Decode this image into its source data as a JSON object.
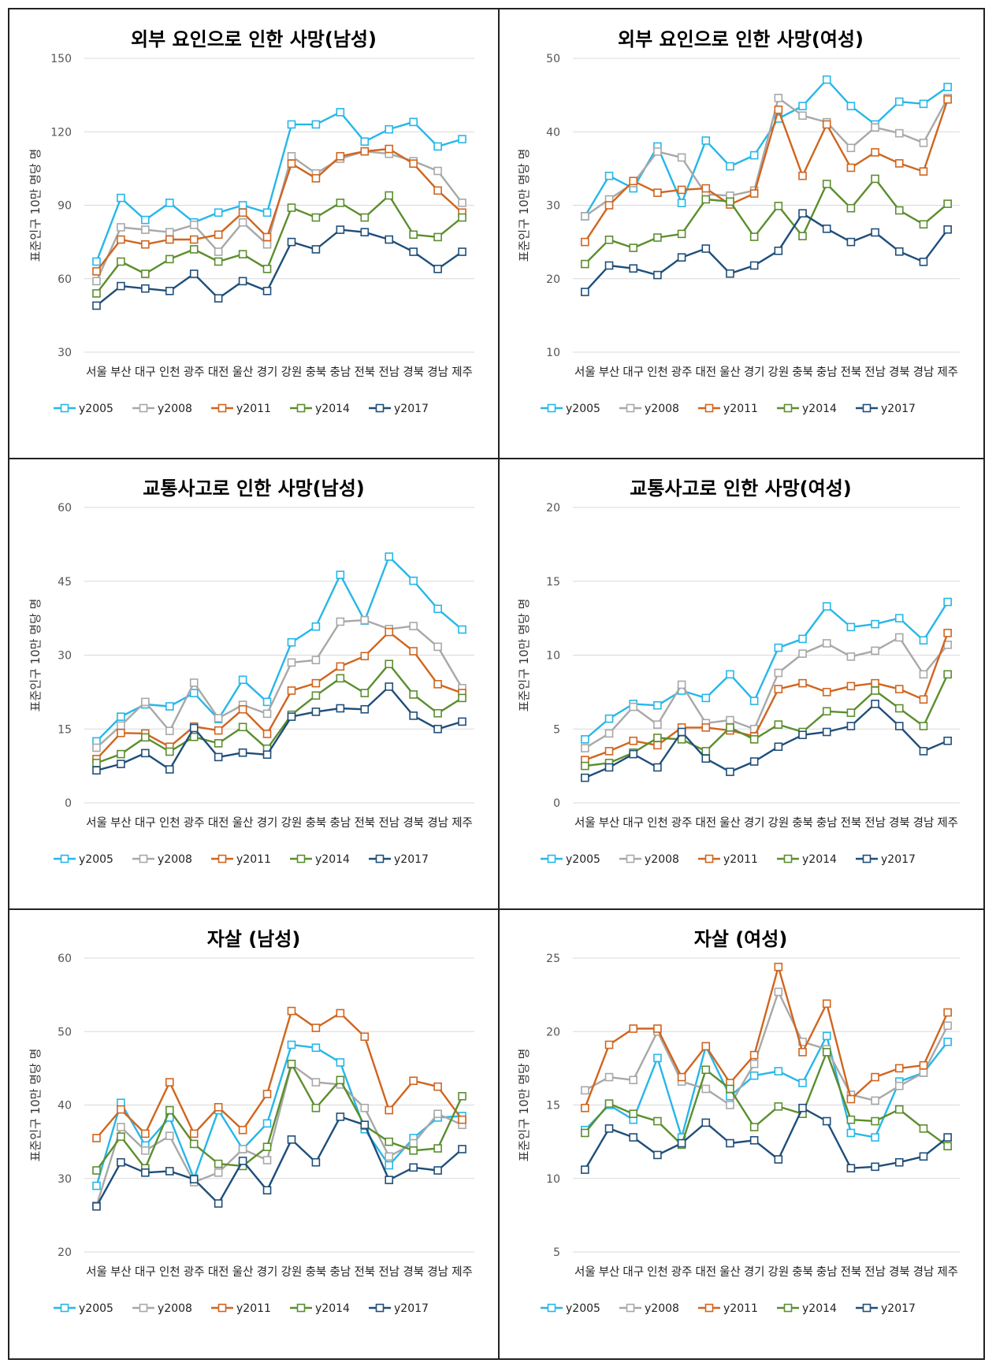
{
  "chart_data": [
    {
      "type": "line",
      "title": "외부 요인으로 인한 사망(남성)",
      "ylabel": "표준인구 10만 명당 명",
      "xlabel": "",
      "ylim": [
        30,
        150
      ],
      "yticks": [
        30,
        60,
        90,
        120,
        150
      ],
      "categories": [
        "서울",
        "부산",
        "대구",
        "인천",
        "광주",
        "대전",
        "울산",
        "경기",
        "강원",
        "충북",
        "충남",
        "전북",
        "전남",
        "경북",
        "경남",
        "제주"
      ],
      "series": [
        {
          "name": "y2005",
          "values": [
            67,
            93,
            84,
            91,
            83,
            87,
            90,
            87,
            123,
            123,
            128,
            116,
            121,
            124,
            114,
            117
          ]
        },
        {
          "name": "y2008",
          "values": [
            59,
            81,
            80,
            79,
            82,
            71,
            83,
            74,
            110,
            103,
            109,
            112,
            111,
            108,
            104,
            91
          ]
        },
        {
          "name": "y2011",
          "values": [
            63,
            76,
            74,
            76,
            76,
            78,
            87,
            77,
            107,
            101,
            110,
            112,
            113,
            107,
            96,
            87
          ]
        },
        {
          "name": "y2014",
          "values": [
            54,
            67,
            62,
            68,
            72,
            67,
            70,
            64,
            89,
            85,
            91,
            85,
            94,
            78,
            77,
            85
          ]
        },
        {
          "name": "y2017",
          "values": [
            49,
            57,
            56,
            55,
            62,
            52,
            59,
            55,
            75,
            72,
            80,
            79,
            76,
            71,
            64,
            71
          ]
        }
      ]
    },
    {
      "type": "line",
      "title": "외부 요인으로 인한 사망(여성)",
      "ylabel": "표준인구 10만 명당 명",
      "xlabel": "",
      "ylim": [
        10,
        50
      ],
      "yticks": [
        10,
        20,
        30,
        40,
        50
      ],
      "categories": [
        "서울",
        "부산",
        "대구",
        "인천",
        "광주",
        "대전",
        "울산",
        "경기",
        "강원",
        "충북",
        "충남",
        "전북",
        "전남",
        "경북",
        "경남",
        "제주"
      ],
      "series": [
        {
          "name": "y2005",
          "values": [
            28.5,
            34,
            32.3,
            38,
            30.3,
            38.8,
            35.3,
            36.8,
            41.8,
            43.5,
            47.1,
            43.5,
            41,
            44.1,
            43.8,
            46.1
          ]
        },
        {
          "name": "y2008",
          "values": [
            28.5,
            30.8,
            33,
            37.3,
            36.5,
            31.5,
            31.3,
            32,
            44.6,
            42.2,
            41.3,
            37.8,
            40.6,
            39.8,
            38.5,
            44.6
          ]
        },
        {
          "name": "y2011",
          "values": [
            25,
            30,
            33.3,
            31.7,
            32.1,
            32.3,
            30.1,
            31.6,
            43,
            34,
            41,
            35.1,
            37.2,
            35.7,
            34.6,
            44.4
          ]
        },
        {
          "name": "y2014",
          "values": [
            22,
            25.3,
            24.2,
            25.6,
            26.1,
            30.8,
            30.5,
            25.7,
            29.9,
            25.8,
            32.9,
            29.6,
            33.6,
            29.3,
            27.4,
            30.2
          ]
        },
        {
          "name": "y2017",
          "values": [
            18.2,
            21.8,
            21.4,
            20.5,
            22.9,
            24.1,
            20.7,
            21.8,
            23.8,
            28.9,
            26.8,
            25,
            26.3,
            23.7,
            22.3,
            26.7
          ]
        }
      ]
    },
    {
      "type": "line",
      "title": "교통사고로 인한 사망(남성)",
      "ylabel": "표준인구 10만 명당 명",
      "xlabel": "",
      "ylim": [
        0,
        60
      ],
      "yticks": [
        0,
        15,
        30,
        45,
        60
      ],
      "categories": [
        "서울",
        "부산",
        "대구",
        "인천",
        "광주",
        "대전",
        "울산",
        "경기",
        "강원",
        "충북",
        "충남",
        "전북",
        "전남",
        "경북",
        "경남",
        "제주"
      ],
      "series": [
        {
          "name": "y2005",
          "values": [
            12.5,
            17.5,
            20,
            19.6,
            22.3,
            17,
            25,
            20.5,
            32.6,
            35.8,
            46.3,
            37,
            50,
            45.1,
            39.4,
            35.2
          ]
        },
        {
          "name": "y2008",
          "values": [
            11.2,
            15.7,
            20.5,
            14.6,
            24.4,
            17.2,
            19.9,
            18.1,
            28.5,
            29,
            36.8,
            37.1,
            35.3,
            35.9,
            31.7,
            23.3
          ]
        },
        {
          "name": "y2011",
          "values": [
            8.9,
            14.2,
            14.1,
            11.4,
            15.5,
            14.7,
            19,
            14,
            22.8,
            24.3,
            27.7,
            29.8,
            34.7,
            30.8,
            24.1,
            22.3
          ]
        },
        {
          "name": "y2014",
          "values": [
            8.1,
            9.9,
            13.3,
            10.4,
            13.4,
            12.1,
            15.4,
            11,
            17.9,
            21.8,
            25.3,
            22.3,
            28.2,
            22,
            18.2,
            21.3
          ]
        },
        {
          "name": "y2017",
          "values": [
            6.6,
            7.9,
            10.1,
            6.8,
            15.2,
            9.3,
            10.2,
            9.8,
            17.5,
            18.5,
            19.2,
            19,
            23.6,
            17.7,
            15,
            16.5
          ]
        }
      ]
    },
    {
      "type": "line",
      "title": "교통사고로 인한 사망(여성)",
      "ylabel": "표준인구 10만 명당 명",
      "xlabel": "",
      "ylim": [
        0,
        20
      ],
      "yticks": [
        0,
        5,
        10,
        15,
        20
      ],
      "categories": [
        "서울",
        "부산",
        "대구",
        "인천",
        "광주",
        "대전",
        "울산",
        "경기",
        "강원",
        "충북",
        "충남",
        "전북",
        "전남",
        "경북",
        "경남",
        "제주"
      ],
      "series": [
        {
          "name": "y2005",
          "values": [
            4.3,
            5.7,
            6.7,
            6.6,
            7.6,
            7.1,
            8.7,
            6.9,
            10.5,
            11.1,
            13.3,
            11.9,
            12.1,
            12.5,
            11,
            13.6
          ]
        },
        {
          "name": "y2008",
          "values": [
            3.7,
            4.7,
            6.5,
            5.3,
            8,
            5.4,
            5.6,
            5,
            8.8,
            10.1,
            10.8,
            9.9,
            10.3,
            11.2,
            8.7,
            10.7
          ]
        },
        {
          "name": "y2011",
          "values": [
            2.9,
            3.5,
            4.2,
            3.9,
            5.1,
            5.1,
            4.9,
            4.5,
            7.7,
            8.1,
            7.5,
            7.9,
            8.1,
            7.7,
            7,
            11.5
          ]
        },
        {
          "name": "y2014",
          "values": [
            2.5,
            2.7,
            3.4,
            4.4,
            4.3,
            3.5,
            5.1,
            4.3,
            5.3,
            4.8,
            6.2,
            6.1,
            7.6,
            6.4,
            5.2,
            8.7
          ]
        },
        {
          "name": "y2017",
          "values": [
            1.7,
            2.4,
            3.3,
            2.4,
            4.8,
            3,
            2.1,
            2.8,
            3.8,
            4.6,
            4.8,
            5.2,
            6.7,
            5.2,
            3.5,
            4.2
          ]
        }
      ]
    },
    {
      "type": "line",
      "title": "자살 (남성)",
      "ylabel": "표준인구 10만 명당 명",
      "xlabel": "",
      "ylim": [
        20,
        60
      ],
      "yticks": [
        20,
        30,
        40,
        50,
        60
      ],
      "categories": [
        "서울",
        "부산",
        "대구",
        "인천",
        "광주",
        "대전",
        "울산",
        "경기",
        "강원",
        "충북",
        "충남",
        "전북",
        "전남",
        "경북",
        "경남",
        "제주"
      ],
      "series": [
        {
          "name": "y2005",
          "values": [
            29,
            40.3,
            34.5,
            38.3,
            30,
            39.3,
            34,
            37.5,
            48.2,
            47.8,
            45.8,
            36.7,
            31.8,
            35.5,
            38.3,
            38.5
          ]
        },
        {
          "name": "y2008",
          "values": [
            26.3,
            37,
            33.8,
            35.8,
            29.5,
            30.8,
            34,
            32.5,
            45.5,
            43.1,
            42.8,
            39.6,
            33,
            34.8,
            38.8,
            37.3
          ]
        },
        {
          "name": "y2011",
          "values": [
            35.5,
            39.4,
            36.1,
            43.1,
            36.1,
            39.7,
            36.6,
            41.5,
            52.8,
            50.5,
            52.5,
            49.3,
            39.3,
            43.3,
            42.5,
            38
          ]
        },
        {
          "name": "y2014",
          "values": [
            31.1,
            35.7,
            31.4,
            39.3,
            34.7,
            32,
            31.7,
            34.3,
            45.6,
            39.6,
            43.4,
            37.2,
            35,
            33.8,
            34.1,
            41.2
          ]
        },
        {
          "name": "y2017",
          "values": [
            26.2,
            32.2,
            30.8,
            31,
            29.9,
            26.6,
            32.4,
            28.4,
            35.3,
            32.2,
            38.4,
            37.3,
            29.8,
            31.5,
            31.1,
            34
          ]
        }
      ]
    },
    {
      "type": "line",
      "title": "자살 (여성)",
      "ylabel": "표준인구 10만 명당 명",
      "xlabel": "",
      "ylim": [
        5,
        25
      ],
      "yticks": [
        5,
        10,
        15,
        20,
        25
      ],
      "categories": [
        "서울",
        "부산",
        "대구",
        "인천",
        "광주",
        "대전",
        "울산",
        "경기",
        "강원",
        "충북",
        "충남",
        "전북",
        "전남",
        "경북",
        "경남",
        "제주"
      ],
      "series": [
        {
          "name": "y2005",
          "values": [
            13.3,
            15,
            14,
            18.2,
            12.8,
            19,
            15.6,
            17,
            17.3,
            16.5,
            19.7,
            13.1,
            12.8,
            16.6,
            17.2,
            19.3
          ]
        },
        {
          "name": "y2008",
          "values": [
            16,
            16.9,
            16.7,
            20,
            16.6,
            16.1,
            15,
            17.8,
            22.7,
            19.3,
            18.8,
            15.7,
            15.3,
            16.3,
            17.2,
            20.4
          ]
        },
        {
          "name": "y2011",
          "values": [
            14.8,
            19.1,
            20.2,
            20.2,
            16.9,
            19,
            16.5,
            18.4,
            24.4,
            18.6,
            21.9,
            15.4,
            16.9,
            17.5,
            17.7,
            21.3
          ]
        },
        {
          "name": "y2014",
          "values": [
            13.1,
            15.1,
            14.4,
            13.9,
            12.3,
            17.4,
            16.1,
            13.5,
            14.9,
            14.4,
            18.6,
            14,
            13.9,
            14.7,
            13.4,
            12.2
          ]
        },
        {
          "name": "y2017",
          "values": [
            10.6,
            13.4,
            12.8,
            11.6,
            12.4,
            13.8,
            12.4,
            12.6,
            11.3,
            14.8,
            13.9,
            10.7,
            10.8,
            11.1,
            11.5,
            12.8
          ]
        }
      ]
    }
  ],
  "colors": {
    "y2005": "#26B7E8",
    "y2008": "#A8A8A8",
    "y2011": "#D0651F",
    "y2014": "#5B8E2E",
    "y2017": "#1F4E79",
    "grid": "#D9D9D9",
    "tick_text": "#555555",
    "title_text": "#000000",
    "border": "#222222"
  }
}
